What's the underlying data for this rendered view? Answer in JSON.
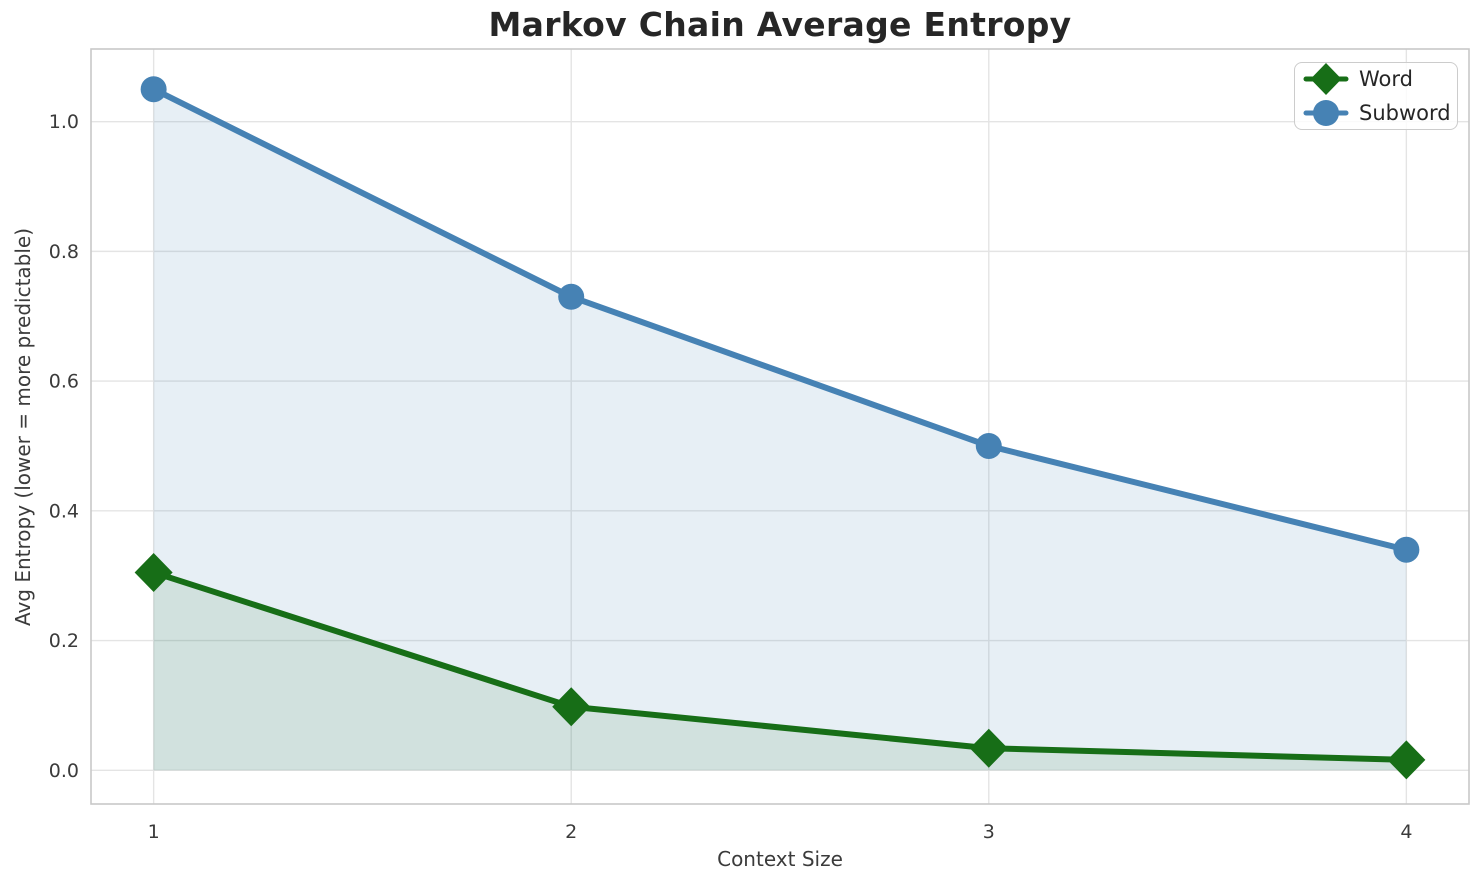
{
  "chart_data": {
    "type": "line",
    "title": "Markov Chain Average Entropy",
    "xlabel": "Context Size",
    "ylabel": "Avg Entropy (lower = more predictable)",
    "x": [
      1,
      2,
      3,
      4
    ],
    "series": [
      {
        "name": "Word",
        "marker": "diamond",
        "color": "#176e17",
        "fill": "rgba(23,110,23,0.10)",
        "values": [
          0.305,
          0.098,
          0.034,
          0.016
        ]
      },
      {
        "name": "Subword",
        "marker": "circle",
        "color": "#4682b4",
        "fill": "rgba(70,130,180,0.13)",
        "values": [
          1.05,
          0.73,
          0.5,
          0.34
        ]
      }
    ],
    "xlim": [
      0.85,
      4.15
    ],
    "ylim": [
      -0.052,
      1.112
    ],
    "xticks": [
      1,
      2,
      3,
      4
    ],
    "xtick_labels": [
      "1",
      "2",
      "3",
      "4"
    ],
    "yticks": [
      0.0,
      0.2,
      0.4,
      0.6,
      0.8,
      1.0
    ],
    "ytick_labels": [
      "0.0",
      "0.2",
      "0.4",
      "0.6",
      "0.8",
      "1.0"
    ],
    "grid": true,
    "legend_position": "upper right",
    "style": {
      "background": "#ffffff",
      "grid_color": "#e4e4e4",
      "spine_color": "#c8c8c8",
      "tick_color": "#3b3b3b",
      "title_color": "#262626"
    }
  }
}
